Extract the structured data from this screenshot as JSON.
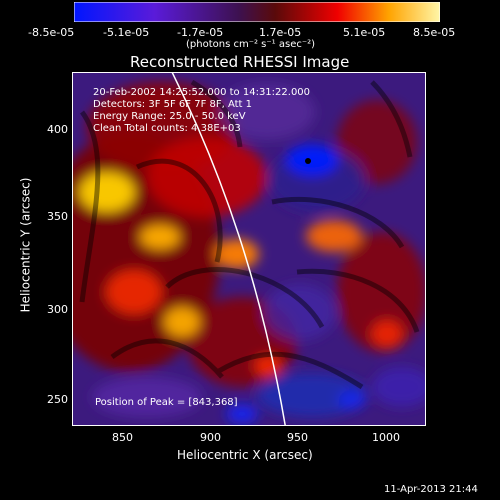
{
  "colorbar": {
    "tick_labels": [
      "-8.5e-05",
      "-5.1e-05",
      "-1.7e-05",
      "1.7e-05",
      "5.1e-05",
      "8.5e-05"
    ],
    "unit_label": "(photons cm⁻² s⁻¹ asec⁻²)"
  },
  "image": {
    "title": "Reconstructed RHESSI Image",
    "info_lines": [
      "20-Feb-2002 14:25:52.000 to 14:31:22.000",
      "Detectors: 3F 5F 6F 7F 8F, Att 1",
      "Energy Range: 25.0 - 50.0 keV",
      "Clean     Total counts: 4.38E+03"
    ],
    "peak_label": "Position of Peak = [843,368]"
  },
  "axes": {
    "x_label": "Heliocentric X (arcsec)",
    "y_label": "Heliocentric Y (arcsec)",
    "x_ticks": [
      "850",
      "900",
      "950",
      "1000"
    ],
    "y_ticks": [
      "400",
      "350",
      "300",
      "250"
    ]
  },
  "footer": {
    "timestamp": "11-Apr-2013 21:44"
  }
}
